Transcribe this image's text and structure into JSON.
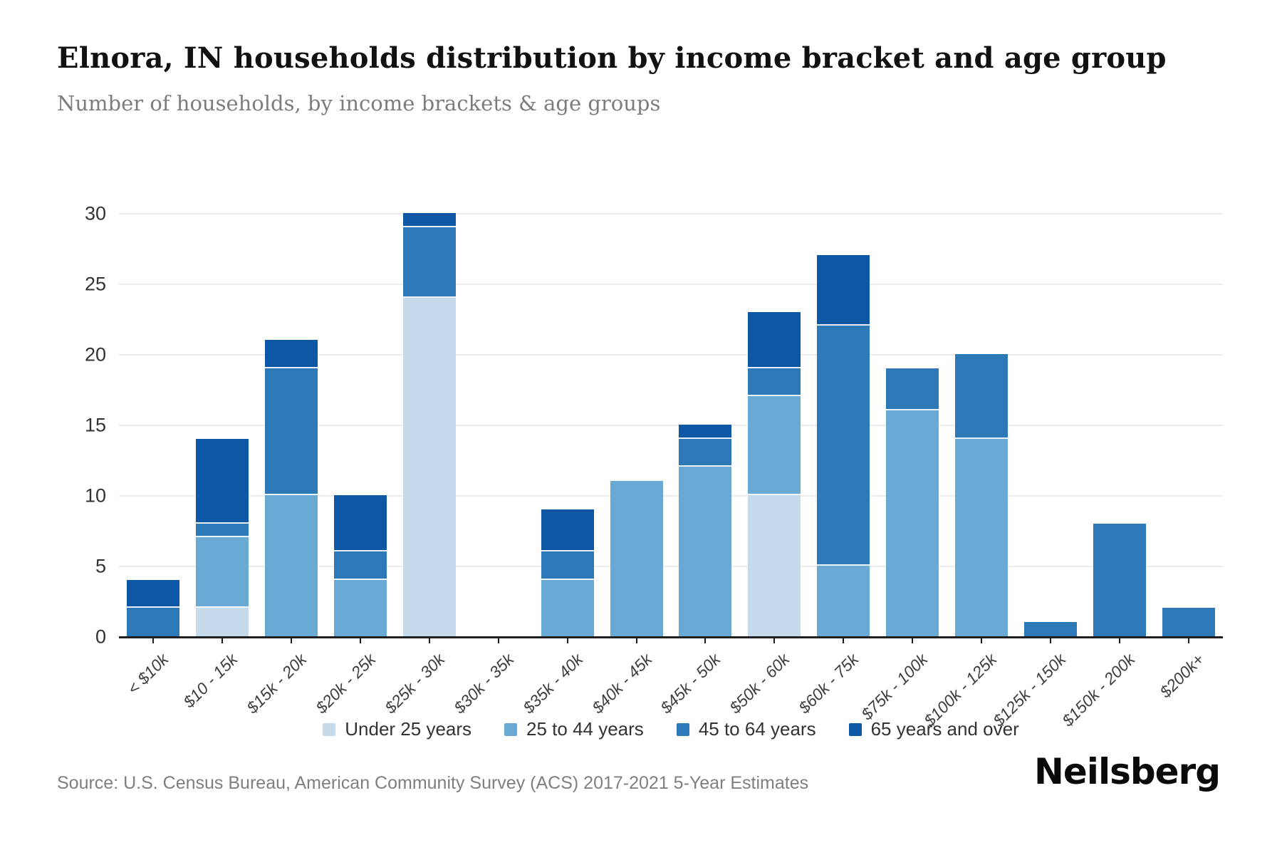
{
  "page": {
    "background": "#ffffff"
  },
  "header": {
    "title": "Elnora, IN households distribution by income bracket and age group",
    "subtitle": "Number of households, by income brackets & age groups"
  },
  "chart_data": {
    "type": "bar",
    "stacked": true,
    "title": "Elnora, IN households distribution by income bracket and age group",
    "xlabel": "",
    "ylabel": "Number of households",
    "categories": [
      "< $10k",
      "$10 - 15k",
      "$15k - 20k",
      "$20k - 25k",
      "$25k - 30k",
      "$30k - 35k",
      "$35k - 40k",
      "$40k - 45k",
      "$45k - 50k",
      "$50k - 60k",
      "$60k - 75k",
      "$75k - 100k",
      "$100k - 125k",
      "$125k - 150k",
      "$150k - 200k",
      "$200k+"
    ],
    "series": [
      {
        "name": "Under 25 years",
        "color": "#c5dbeb",
        "values": [
          0,
          2,
          0,
          0,
          24,
          0,
          0,
          0,
          0,
          10,
          0,
          0,
          0,
          0,
          0,
          0
        ]
      },
      {
        "name": "25 to 44 years",
        "color": "#69aad5",
        "values": [
          0,
          5,
          10,
          4,
          0,
          0,
          4,
          11,
          12,
          7,
          5,
          16,
          14,
          0,
          0,
          0
        ]
      },
      {
        "name": "45 to 64 years",
        "color": "#2d79b7",
        "values": [
          2,
          1,
          9,
          2,
          5,
          0,
          2,
          0,
          2,
          2,
          17,
          3,
          6,
          1,
          8,
          2
        ]
      },
      {
        "name": "65 years and over",
        "color": "#0d57a4",
        "values": [
          2,
          6,
          2,
          4,
          1,
          0,
          3,
          0,
          1,
          4,
          5,
          0,
          0,
          0,
          0,
          0
        ]
      }
    ],
    "totals": [
      4,
      14,
      21,
      10,
      30,
      0,
      9,
      11,
      15,
      23,
      27,
      19,
      20,
      1,
      8,
      2
    ],
    "ylim": [
      0,
      30
    ],
    "yticks": [
      0,
      5,
      10,
      15,
      20,
      25,
      30
    ],
    "ytick_labels": [
      "0",
      "5",
      "10",
      "15",
      "20",
      "25",
      "30"
    ],
    "grid": true,
    "legend_position": "bottom",
    "colors": {
      "gridline": "#ececec",
      "axis": "#1f1f1f",
      "tick_label": "#3f3f3f"
    }
  },
  "footer": {
    "source": "Source: U.S. Census Bureau, American Community Survey (ACS) 2017-2021 5-Year Estimates",
    "logo": "Neilsberg"
  }
}
